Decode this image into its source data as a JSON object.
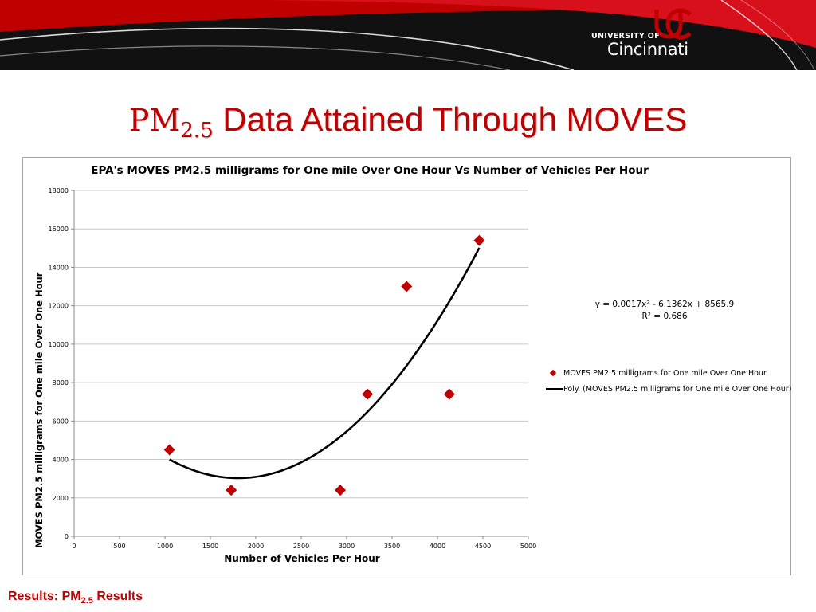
{
  "header": {
    "logo_top": "UNIVERSITY OF",
    "logo_bottom": "Cincinnati"
  },
  "slide": {
    "title_pm": "PM",
    "title_sub": "2.5",
    "title_rest": " Data Attained Through MOVES"
  },
  "footer": {
    "prefix": "Results: PM",
    "sub": "2.5",
    "suffix": " Results"
  },
  "colors": {
    "accent": "#c00000",
    "banner": "#111111",
    "marker": "#c00000",
    "trendline": "#000000"
  },
  "chart_data": {
    "type": "scatter",
    "title": "EPA's MOVES PM2.5 milligrams  for One mile Over One Hour Vs Number of Vehicles Per Hour",
    "xlabel": "Number of Vehicles Per Hour",
    "ylabel": "MOVES PM2.5 milligrams  for One mile Over One Hour",
    "xlim": [
      0,
      5000
    ],
    "ylim": [
      0,
      18000
    ],
    "x_ticks": [
      0,
      500,
      1000,
      1500,
      2000,
      2500,
      3000,
      3500,
      4000,
      4500,
      5000
    ],
    "y_ticks": [
      0,
      2000,
      4000,
      6000,
      8000,
      10000,
      12000,
      14000,
      16000,
      18000
    ],
    "grid": "horizontal",
    "legend_position": "right",
    "series": [
      {
        "name": "MOVES PM2.5 milligrams  for One mile Over One Hour",
        "marker": "diamond",
        "points": [
          {
            "x": 1050,
            "y": 4500
          },
          {
            "x": 1730,
            "y": 2400
          },
          {
            "x": 2930,
            "y": 2400
          },
          {
            "x": 3230,
            "y": 7400
          },
          {
            "x": 3660,
            "y": 13000
          },
          {
            "x": 4130,
            "y": 7400
          },
          {
            "x": 4460,
            "y": 15400
          }
        ]
      }
    ],
    "trendline": {
      "name": "Poly. (MOVES PM2.5 milligrams  for One mile Over One Hour)",
      "type": "polynomial",
      "order": 2,
      "x_range": [
        1050,
        4460
      ],
      "coefficients": [
        0.0017,
        -6.1362,
        8565.9
      ],
      "equation": "y = 0.0017x² - 6.1362x + 8565.9",
      "r_squared": "R² = 0.686"
    }
  }
}
